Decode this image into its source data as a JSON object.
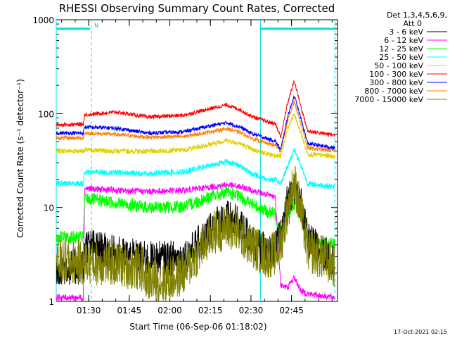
{
  "chart_data": {
    "type": "line",
    "title": "RHESSI Observing Summary Count Rates, Corrected",
    "xlabel": "Start Time (06-Sep-06 01:18:02)",
    "ylabel": "Corrected Count Rate (s⁻¹ detector⁻¹)",
    "x_unit": "UT minutes after 01:00",
    "xlim": [
      78,
      182
    ],
    "ylim": [
      1,
      1000
    ],
    "yscale": "log",
    "x_ticks": [
      {
        "x": 90,
        "label": "01:30"
      },
      {
        "x": 105,
        "label": "01:45"
      },
      {
        "x": 120,
        "label": "02:00"
      },
      {
        "x": 135,
        "label": "02:15"
      },
      {
        "x": 150,
        "label": "02:30"
      },
      {
        "x": 165,
        "label": "02:45"
      }
    ],
    "y_ticks": [
      {
        "y": 1,
        "label": "1"
      },
      {
        "y": 10,
        "label": "10"
      },
      {
        "y": 100,
        "label": "100"
      },
      {
        "y": 1000,
        "label": "1000"
      }
    ],
    "legend": {
      "position": "top-right-outside",
      "header": [
        "Det 1,3,4,5,6,9,",
        "Att 0"
      ]
    },
    "markers": {
      "flag_label": "N",
      "flag_level": 800,
      "flag_intervals": [
        [
          78,
          90.5
        ],
        [
          153.5,
          181
        ]
      ],
      "dashed_lines": [
        91,
        181
      ],
      "solid_lines": [
        78,
        153.5
      ]
    },
    "series": [
      {
        "name": "3 - 6 keV",
        "color": "#000000",
        "x": [
          78,
          88,
          88.5,
          100,
          112,
          125,
          132,
          136,
          141,
          145,
          150,
          156,
          159,
          161,
          163.5,
          166,
          168.5,
          171,
          181
        ],
        "y": [
          2.3,
          2.3,
          4.0,
          3.2,
          2.8,
          2.9,
          4.5,
          6.5,
          7.8,
          6.8,
          4.6,
          3.2,
          3.6,
          5.0,
          12.0,
          17.0,
          11.0,
          4.5,
          2.6
        ]
      },
      {
        "name": "6 - 12 keV",
        "color": "#ff00ff",
        "x": [
          78,
          88,
          88.5,
          100,
          112,
          125,
          135,
          141,
          146,
          150,
          156,
          159,
          161,
          163.5,
          166,
          168.5,
          171,
          181
        ],
        "y": [
          1.1,
          1.1,
          16.0,
          15.2,
          14.8,
          15.2,
          16.5,
          17.5,
          16.5,
          15.5,
          13.5,
          13.0,
          1.5,
          1.4,
          1.8,
          1.3,
          1.2,
          1.1
        ]
      },
      {
        "name": "12 - 25 keV",
        "color": "#00ff00",
        "x": [
          78,
          88,
          88.5,
          100,
          112,
          125,
          135,
          141,
          146,
          150,
          156,
          159,
          161,
          163.5,
          166,
          168.5,
          171,
          181
        ],
        "y": [
          4.8,
          4.8,
          12.5,
          11.2,
          10.0,
          10.2,
          13.0,
          14.5,
          13.0,
          11.0,
          9.0,
          8.5,
          5.0,
          9.0,
          11.0,
          8.0,
          4.5,
          4.0
        ]
      },
      {
        "name": "25 - 50 keV",
        "color": "#00ffff",
        "x": [
          78,
          88,
          88.5,
          100,
          112,
          125,
          135,
          141,
          146,
          150,
          156,
          159,
          161,
          163.5,
          166,
          168.5,
          171,
          181
        ],
        "y": [
          18.0,
          18.0,
          24.0,
          23.5,
          23.0,
          24.0,
          28.0,
          31.0,
          28.0,
          23.0,
          20.0,
          19.5,
          18.0,
          27.0,
          42.0,
          28.0,
          18.0,
          16.5
        ]
      },
      {
        "name": "50 - 100 keV",
        "color": "#e0d000",
        "x": [
          78,
          88,
          88.5,
          100,
          112,
          125,
          135,
          141,
          146,
          150,
          156,
          159,
          161,
          163.5,
          166,
          168.5,
          171,
          181
        ],
        "y": [
          40,
          40,
          41,
          40,
          39.5,
          41,
          47,
          52,
          48,
          42,
          37,
          36,
          35,
          68,
          98,
          62,
          37,
          35
        ]
      },
      {
        "name": "100 - 300 keV",
        "color": "#ff0000",
        "x": [
          78,
          88,
          88.5,
          100,
          112,
          125,
          135,
          141,
          146,
          150,
          156,
          159,
          161,
          163.5,
          166,
          168.5,
          171,
          181
        ],
        "y": [
          76,
          77,
          97,
          104,
          92,
          96,
          113,
          124,
          110,
          94,
          82,
          78,
          56,
          128,
          225,
          118,
          65,
          59
        ]
      },
      {
        "name": "300 - 800 keV",
        "color": "#0000ff",
        "x": [
          78,
          88,
          88.5,
          100,
          112,
          125,
          135,
          141,
          146,
          150,
          156,
          159,
          161,
          163.5,
          166,
          168.5,
          171,
          181
        ],
        "y": [
          62,
          62,
          72,
          70,
          62,
          64,
          74,
          80,
          72,
          62,
          54,
          51,
          41,
          92,
          155,
          88,
          48,
          43
        ]
      },
      {
        "name": "800 - 7000 keV",
        "color": "#ff8000",
        "x": [
          78,
          88,
          88.5,
          100,
          112,
          125,
          135,
          141,
          146,
          150,
          156,
          159,
          161,
          163.5,
          166,
          168.5,
          171,
          181
        ],
        "y": [
          55,
          55,
          62,
          60,
          56,
          57,
          64,
          69,
          63,
          55,
          48,
          46,
          40,
          82,
          135,
          78,
          43,
          40
        ]
      },
      {
        "name": "7000 - 15000 keV",
        "color": "#808000",
        "x": [
          78,
          88,
          100,
          110,
          112,
          118,
          125,
          132,
          136,
          141,
          145,
          150,
          156,
          159,
          161,
          163.5,
          166,
          168.5,
          171,
          181
        ],
        "y": [
          2.6,
          2.6,
          2.5,
          2.2,
          1.7,
          1.6,
          2.0,
          3.8,
          5.4,
          6.2,
          5.6,
          4.0,
          3.0,
          3.3,
          4.0,
          9.5,
          19.0,
          9.0,
          3.6,
          2.4
        ]
      }
    ]
  },
  "footer": {
    "timestamp": "17-Oct-2021 02:15"
  }
}
